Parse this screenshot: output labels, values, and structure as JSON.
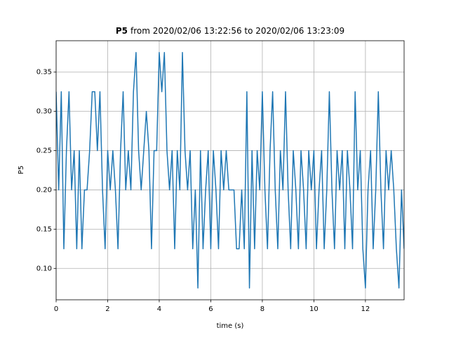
{
  "chart_data": {
    "type": "line",
    "title_variable": "P5",
    "title": "from 2020/02/06 13:22:56 to 2020/02/06 13:23:09",
    "xlabel": "time (s)",
    "ylabel": "P5",
    "x": [
      0,
      0.1,
      0.2,
      0.3,
      0.4,
      0.5,
      0.6,
      0.7,
      0.8,
      0.9,
      1,
      1.1,
      1.2,
      1.3,
      1.4,
      1.5,
      1.6,
      1.7,
      1.8,
      1.9,
      2,
      2.1,
      2.2,
      2.3,
      2.4,
      2.5,
      2.6,
      2.7,
      2.8,
      2.9,
      3,
      3.1,
      3.2,
      3.3,
      3.4,
      3.5,
      3.6,
      3.7,
      3.8,
      3.9,
      4,
      4.1,
      4.2,
      4.3,
      4.4,
      4.5,
      4.6,
      4.7,
      4.8,
      4.9,
      5,
      5.1,
      5.2,
      5.3,
      5.4,
      5.5,
      5.6,
      5.7,
      5.8,
      5.9,
      6,
      6.1,
      6.2,
      6.3,
      6.4,
      6.5,
      6.6,
      6.7,
      6.8,
      6.9,
      7,
      7.1,
      7.2,
      7.3,
      7.4,
      7.5,
      7.6,
      7.7,
      7.8,
      7.9,
      8,
      8.1,
      8.2,
      8.3,
      8.4,
      8.5,
      8.6,
      8.7,
      8.8,
      8.9,
      9,
      9.1,
      9.2,
      9.3,
      9.4,
      9.5,
      9.6,
      9.7,
      9.8,
      9.9,
      10,
      10.1,
      10.2,
      10.3,
      10.4,
      10.5,
      10.6,
      10.7,
      10.8,
      10.9,
      11,
      11.1,
      11.2,
      11.3,
      11.4,
      11.5,
      11.6,
      11.7,
      11.8,
      11.9,
      12,
      12.1,
      12.2,
      12.3,
      12.4,
      12.5,
      12.6,
      12.7,
      12.8,
      12.9,
      13,
      13.1,
      13.2,
      13.3,
      13.4,
      13.5
    ],
    "series": [
      {
        "name": "P5",
        "color": "#1f77b4",
        "values": [
          0.325,
          0.2,
          0.325,
          0.125,
          0.25,
          0.325,
          0.2,
          0.25,
          0.125,
          0.25,
          0.125,
          0.2,
          0.2,
          0.25,
          0.325,
          0.325,
          0.25,
          0.325,
          0.2,
          0.125,
          0.25,
          0.2,
          0.25,
          0.2,
          0.125,
          0.25,
          0.325,
          0.2,
          0.25,
          0.2,
          0.325,
          0.375,
          0.25,
          0.2,
          0.25,
          0.3,
          0.25,
          0.125,
          0.25,
          0.25,
          0.375,
          0.325,
          0.375,
          0.25,
          0.2,
          0.25,
          0.125,
          0.25,
          0.2,
          0.375,
          0.25,
          0.2,
          0.25,
          0.125,
          0.2,
          0.075,
          0.25,
          0.125,
          0.2,
          0.25,
          0.125,
          0.25,
          0.2,
          0.125,
          0.25,
          0.2,
          0.25,
          0.2,
          0.2,
          0.2,
          0.125,
          0.125,
          0.2,
          0.125,
          0.325,
          0.075,
          0.25,
          0.125,
          0.25,
          0.2,
          0.325,
          0.2,
          0.125,
          0.25,
          0.325,
          0.2,
          0.125,
          0.25,
          0.2,
          0.325,
          0.2,
          0.125,
          0.25,
          0.2,
          0.125,
          0.25,
          0.2,
          0.125,
          0.25,
          0.2,
          0.25,
          0.125,
          0.2,
          0.25,
          0.125,
          0.2,
          0.325,
          0.2,
          0.125,
          0.25,
          0.2,
          0.25,
          0.125,
          0.25,
          0.2,
          0.125,
          0.325,
          0.2,
          0.25,
          0.125,
          0.075,
          0.2,
          0.25,
          0.125,
          0.2,
          0.325,
          0.2,
          0.125,
          0.25,
          0.2,
          0.25,
          0.2,
          0.125,
          0.075,
          0.2,
          0.125
        ]
      }
    ],
    "xlim": [
      0,
      13.5
    ],
    "ylim": [
      0.06,
      0.39
    ],
    "xticks": [
      0,
      2,
      4,
      6,
      8,
      10,
      12
    ],
    "yticks": [
      {
        "value": 0.1,
        "label": "0.10"
      },
      {
        "value": 0.15,
        "label": "0.15"
      },
      {
        "value": 0.2,
        "label": "0.20"
      },
      {
        "value": 0.25,
        "label": "0.25"
      },
      {
        "value": 0.3,
        "label": "0.30"
      },
      {
        "value": 0.35,
        "label": "0.35"
      }
    ],
    "grid": true
  }
}
